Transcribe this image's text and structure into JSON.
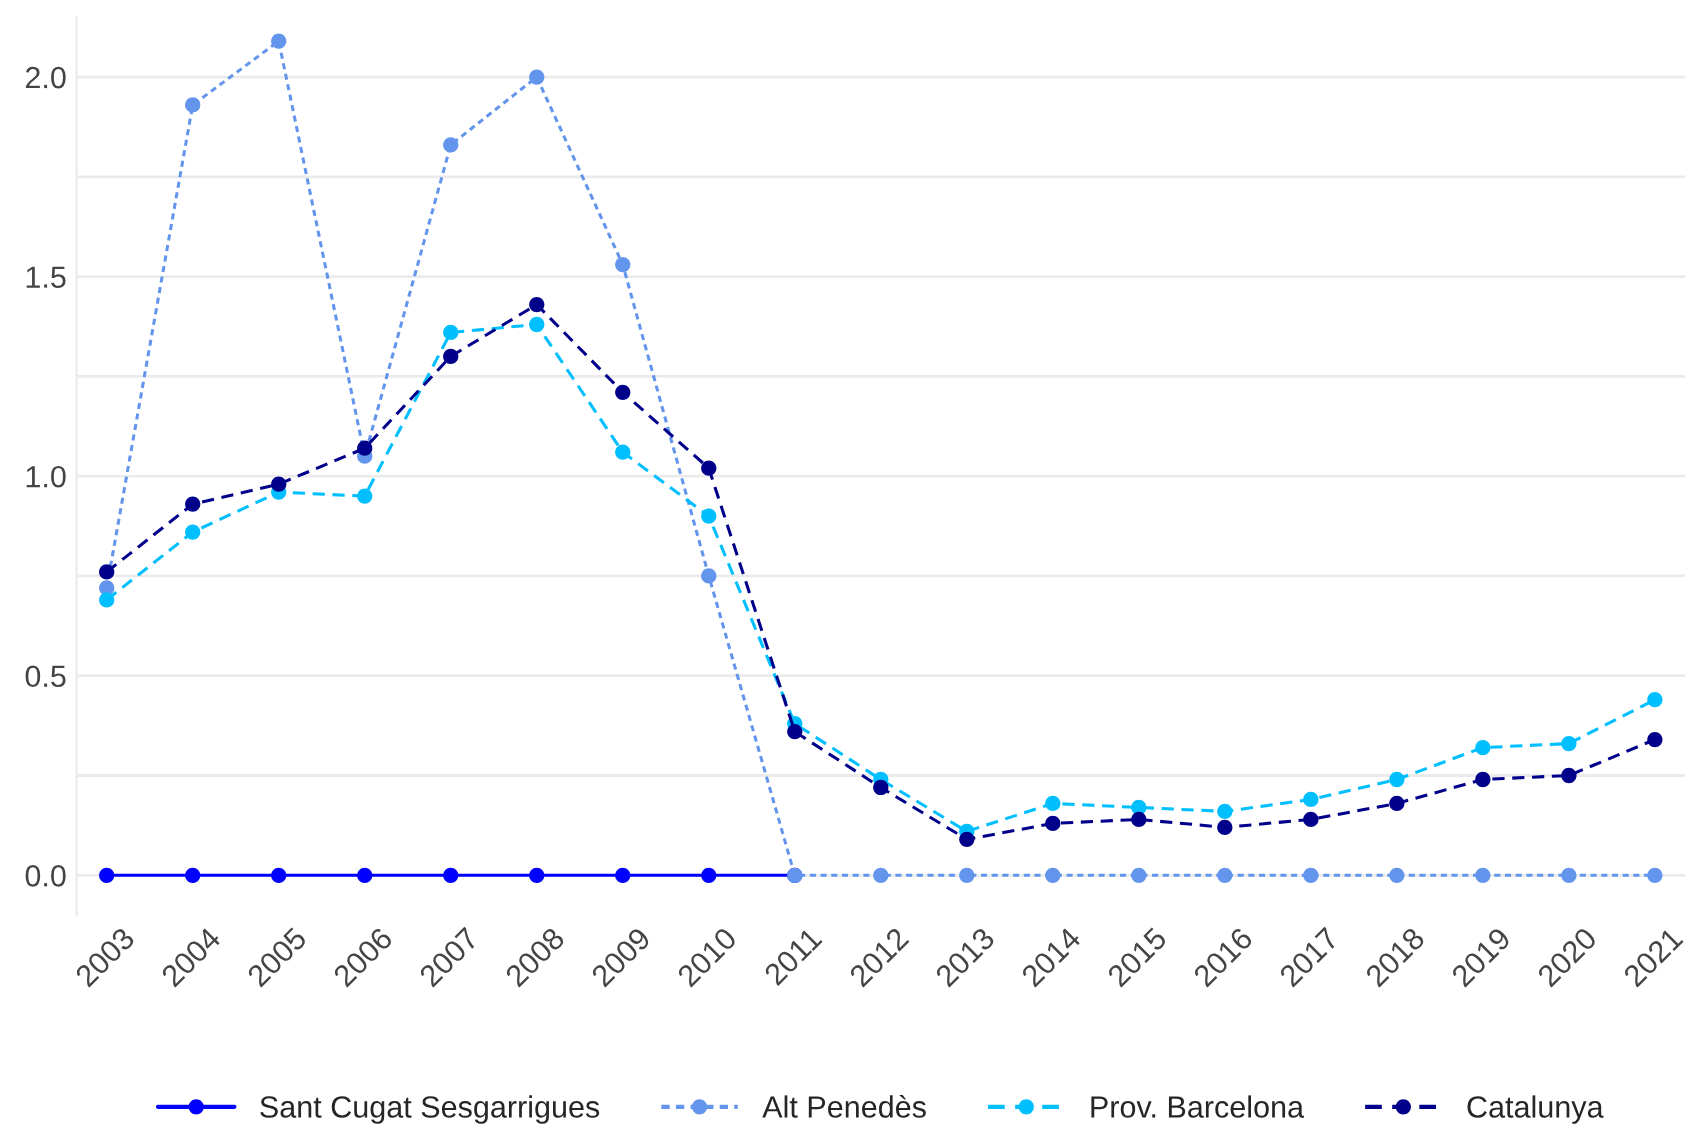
{
  "chart_data": {
    "type": "line",
    "categories": [
      "2003",
      "2004",
      "2005",
      "2006",
      "2007",
      "2008",
      "2009",
      "2010",
      "2011",
      "2012",
      "2013",
      "2014",
      "2015",
      "2016",
      "2017",
      "2018",
      "2019",
      "2020",
      "2021"
    ],
    "series": [
      {
        "name": "Sant Cugat Sesgarrigues",
        "color": "#0000ff",
        "line_style": "solid",
        "values": [
          0,
          0,
          0,
          0,
          0,
          0,
          0,
          0,
          0,
          null,
          null,
          null,
          null,
          null,
          null,
          null,
          null,
          null,
          null
        ]
      },
      {
        "name": "Alt Penedès",
        "color": "#6495ed",
        "line_style": "dotted",
        "values": [
          0.72,
          1.93,
          2.09,
          1.05,
          1.83,
          2.0,
          1.53,
          0.75,
          0,
          0,
          0,
          0,
          0,
          0,
          0,
          0,
          0,
          0,
          0
        ]
      },
      {
        "name": "Prov. Barcelona",
        "color": "#00bfff",
        "line_style": "dashed",
        "values": [
          0.69,
          0.86,
          0.96,
          0.95,
          1.36,
          1.38,
          1.06,
          0.9,
          0.38,
          0.24,
          0.11,
          0.18,
          0.17,
          0.16,
          0.19,
          0.24,
          0.32,
          0.33,
          0.44
        ]
      },
      {
        "name": "Catalunya",
        "color": "#00008b",
        "line_style": "dashed",
        "values": [
          0.76,
          0.93,
          0.98,
          1.07,
          1.3,
          1.43,
          1.21,
          1.02,
          0.36,
          0.22,
          0.09,
          0.13,
          0.14,
          0.12,
          0.14,
          0.18,
          0.24,
          0.25,
          0.34
        ]
      }
    ],
    "ylim": [
      -0.1,
      2.15
    ],
    "yticks": [
      {
        "value": 0,
        "label": "0.0"
      },
      {
        "value": 0.25,
        "label": null
      },
      {
        "value": 0.5,
        "label": "0.5"
      },
      {
        "value": 0.75,
        "label": null
      },
      {
        "value": 1,
        "label": "1.0"
      },
      {
        "value": 1.25,
        "label": null
      },
      {
        "value": 1.5,
        "label": "1.5"
      },
      {
        "value": 1.75,
        "label": null
      },
      {
        "value": 2,
        "label": "2.0"
      }
    ],
    "grid": "y",
    "legend": "bottom",
    "marker": "circle"
  }
}
